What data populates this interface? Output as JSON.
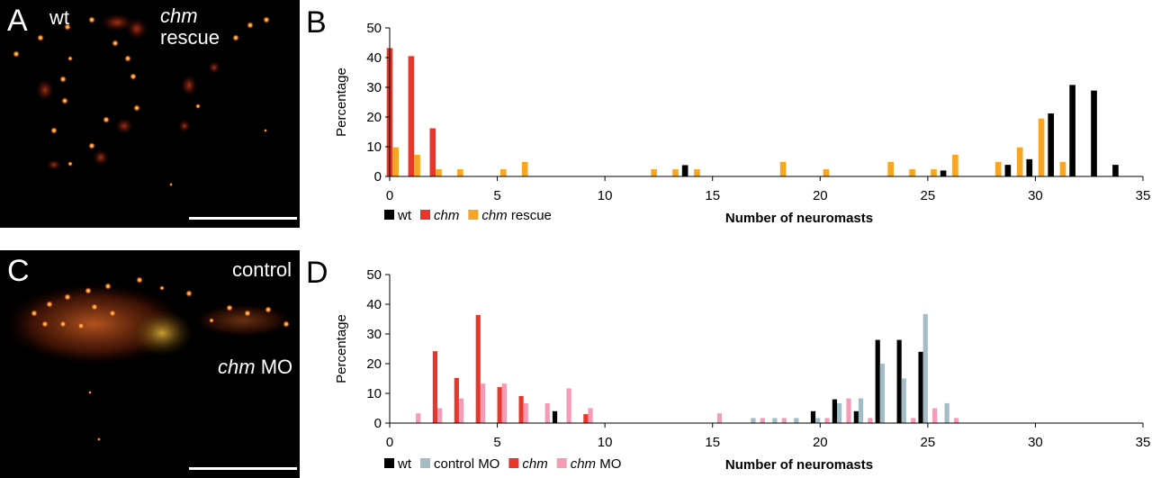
{
  "panels": {
    "A": {
      "letter": "A",
      "label_left": "wt",
      "label_right_italic": "chm",
      "label_right_plain": "rescue"
    },
    "B": {
      "letter": "B"
    },
    "C": {
      "letter": "C",
      "label_top": "control",
      "label_bottom_italic": "chm",
      "label_bottom_plain": "MO"
    },
    "D": {
      "letter": "D"
    }
  },
  "colors": {
    "wt": "#000000",
    "chm": "#e8372a",
    "chm_rescue": "#f6a623",
    "control_MO": "#a3bcc6",
    "chm_MO": "#f49bb5"
  },
  "chart_data": [
    {
      "type": "bar",
      "panel": "B",
      "xlabel": "Number of neuromasts",
      "ylabel": "Percentage",
      "xlim": [
        0,
        35
      ],
      "ylim": [
        0,
        50
      ],
      "xticks": [
        0,
        5,
        10,
        15,
        20,
        25,
        30,
        35
      ],
      "yticks": [
        0,
        10,
        20,
        30,
        40,
        50
      ],
      "legend_position": "bottom-left",
      "series": [
        {
          "name": "wt",
          "name_italic": false,
          "color_key": "wt",
          "points": [
            [
              14,
              3.8
            ],
            [
              26,
              2.0
            ],
            [
              29,
              3.9
            ],
            [
              30,
              5.8
            ],
            [
              31,
              21.2
            ],
            [
              32,
              30.8
            ],
            [
              33,
              28.9
            ],
            [
              34,
              3.9
            ]
          ]
        },
        {
          "name": "chm",
          "name_italic": true,
          "color_key": "chm",
          "points": [
            [
              0,
              43.2
            ],
            [
              1,
              40.5
            ],
            [
              2,
              16.2
            ]
          ]
        },
        {
          "name": "chm",
          "name_suffix": " rescue",
          "name_italic": true,
          "color_key": "chm_rescue",
          "points": [
            [
              0,
              9.8
            ],
            [
              1,
              7.3
            ],
            [
              2,
              2.4
            ],
            [
              3,
              2.4
            ],
            [
              5,
              2.4
            ],
            [
              6,
              4.9
            ],
            [
              12,
              2.4
            ],
            [
              13,
              2.4
            ],
            [
              14,
              2.4
            ],
            [
              18,
              4.9
            ],
            [
              20,
              2.4
            ],
            [
              23,
              4.9
            ],
            [
              24,
              2.4
            ],
            [
              25,
              2.4
            ],
            [
              26,
              7.3
            ],
            [
              28,
              4.9
            ],
            [
              29,
              9.8
            ],
            [
              30,
              19.5
            ],
            [
              31,
              4.9
            ]
          ]
        }
      ]
    },
    {
      "type": "bar",
      "panel": "D",
      "xlabel": "Number of neuromasts",
      "ylabel": "Percentage",
      "xlim": [
        0,
        35
      ],
      "ylim": [
        0,
        50
      ],
      "xticks": [
        0,
        5,
        10,
        15,
        20,
        25,
        30,
        35
      ],
      "yticks": [
        0,
        10,
        20,
        30,
        40,
        50
      ],
      "legend_position": "bottom-left",
      "series": [
        {
          "name": "wt",
          "name_italic": false,
          "color_key": "wt",
          "points": [
            [
              8,
              4.0
            ],
            [
              20,
              4.0
            ],
            [
              21,
              8.0
            ],
            [
              22,
              4.0
            ],
            [
              23,
              28.0
            ],
            [
              24,
              28.0
            ],
            [
              25,
              24.0
            ]
          ]
        },
        {
          "name": "control MO",
          "name_italic": false,
          "color_key": "control_MO",
          "points": [
            [
              17,
              1.7
            ],
            [
              18,
              1.7
            ],
            [
              19,
              1.7
            ],
            [
              20,
              1.7
            ],
            [
              21,
              6.7
            ],
            [
              22,
              8.3
            ],
            [
              23,
              20.0
            ],
            [
              24,
              15.0
            ],
            [
              25,
              36.7
            ],
            [
              26,
              6.7
            ]
          ]
        },
        {
          "name": "chm",
          "name_italic": true,
          "color_key": "chm",
          "points": [
            [
              2,
              24.2
            ],
            [
              3,
              15.2
            ],
            [
              4,
              36.4
            ],
            [
              5,
              12.1
            ],
            [
              6,
              9.1
            ],
            [
              9,
              3.0
            ]
          ]
        },
        {
          "name": "chm",
          "name_suffix": " MO",
          "name_italic": true,
          "color_key": "chm_MO",
          "points": [
            [
              1,
              3.3
            ],
            [
              2,
              5.0
            ],
            [
              3,
              8.3
            ],
            [
              4,
              13.3
            ],
            [
              5,
              13.3
            ],
            [
              6,
              6.7
            ],
            [
              7,
              6.7
            ],
            [
              8,
              11.7
            ],
            [
              9,
              5.0
            ],
            [
              15,
              3.3
            ],
            [
              17,
              1.7
            ],
            [
              18,
              1.7
            ],
            [
              20,
              1.7
            ],
            [
              21,
              8.3
            ],
            [
              22,
              1.7
            ],
            [
              24,
              1.7
            ],
            [
              25,
              5.0
            ],
            [
              26,
              1.7
            ]
          ]
        }
      ]
    }
  ]
}
